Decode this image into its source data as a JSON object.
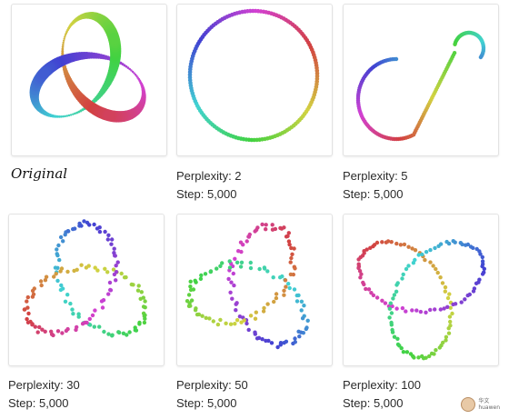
{
  "panels": [
    {
      "id": "original",
      "caption": "Original",
      "perplexity": null,
      "step": null,
      "shape": "trefoil-3d"
    },
    {
      "id": "p2",
      "caption": "Perplexity: 2",
      "perplexity": 2,
      "step": "Step: 5,000",
      "shape": "circle"
    },
    {
      "id": "p5",
      "caption": "Perplexity: 5",
      "perplexity": 5,
      "step": "Step: 5,000",
      "shape": "s-curve"
    },
    {
      "id": "p30",
      "caption": "Perplexity: 30",
      "perplexity": 30,
      "step": "Step: 5,000",
      "shape": "trefoil"
    },
    {
      "id": "p50",
      "caption": "Perplexity: 50",
      "perplexity": 50,
      "step": "Step: 5,000",
      "shape": "trefoil"
    },
    {
      "id": "p100",
      "caption": "Perplexity: 100",
      "perplexity": 100,
      "step": "Step: 5,000",
      "shape": "trefoil"
    }
  ],
  "watermark": {
    "label": "华文",
    "sublabel": "huawen"
  }
}
